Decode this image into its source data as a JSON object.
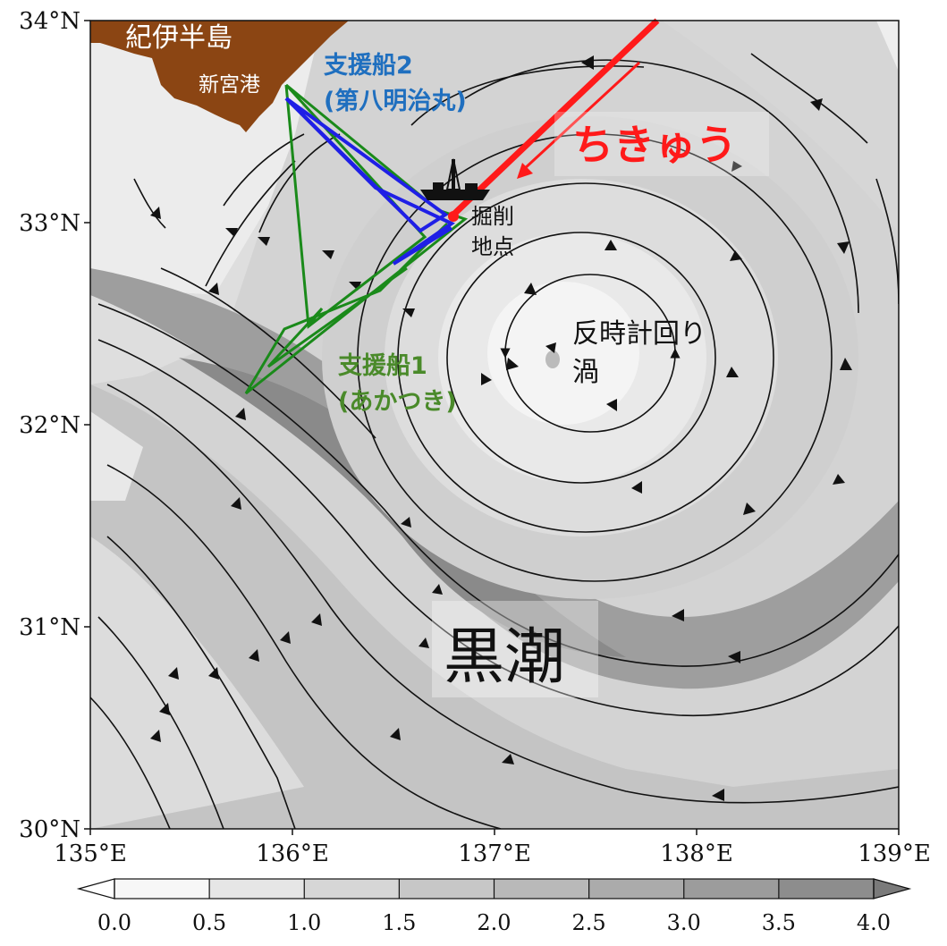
{
  "map": {
    "axes": {
      "lat_labels": [
        "34°N",
        "33°N",
        "32°N",
        "31°N",
        "30°N"
      ],
      "lon_labels": [
        "135°E",
        "136°E",
        "137°E",
        "138°E",
        "139°E"
      ]
    },
    "colorbar": {
      "ticks": [
        "0.0",
        "0.5",
        "1.0",
        "1.5",
        "2.0",
        "2.5",
        "3.0",
        "3.5",
        "4.0"
      ],
      "colors": [
        "#f7f7f7",
        "#e6e6e6",
        "#d6d6d6",
        "#c7c7c7",
        "#b9b9b9",
        "#ababab",
        "#9c9c9c",
        "#8d8d8d"
      ]
    },
    "labels": {
      "peninsula": "紀伊半島",
      "port": "新宮港",
      "support2_line1": "支援船2",
      "support2_line2": "(第八明治丸)",
      "chikyu": "ちきゅう",
      "drill_line1": "掘削",
      "drill_line2": "地点",
      "eddy_line1": "反時計回り",
      "eddy_line2": "渦",
      "support1_line1": "支援船1",
      "support1_line2": "(あかつき)",
      "kuroshio": "黒潮"
    },
    "colors": {
      "land": "#8b4513",
      "chikyu_track": "#ff1a1a",
      "support1_track": "#1a8a1a",
      "support2_track": "#1f1fe6",
      "support2_label": "#1f6fbf",
      "support1_label": "#4a8a2a"
    }
  }
}
